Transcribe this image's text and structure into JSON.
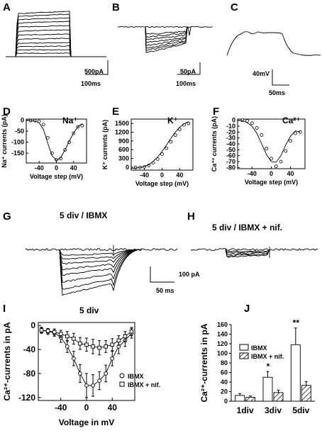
{
  "panel_labels": {
    "A": "A",
    "B": "B",
    "C": "C",
    "D": "D",
    "E": "E",
    "F": "F",
    "G": "G",
    "H": "H",
    "I": "I",
    "J": "J"
  },
  "scalebars": {
    "A_y": "500pA",
    "A_x": "100ms",
    "B_y": "50pA",
    "B_x": "100ms",
    "C_y": "40mV",
    "C_x": "50ms",
    "GH_y": "100 pA",
    "GH_x": "50 ms"
  },
  "titles": {
    "G": "5 div / IBMX",
    "H": "5 div / IBMX + nif."
  },
  "chart_data": [
    {
      "id": "D",
      "type": "line",
      "title": "Na⁺",
      "xlabel": "Voltage step (mV)",
      "ylabel": "Na⁺ currents (pA)",
      "xlim": [
        -70,
        70
      ],
      "ylim": [
        -195,
        5
      ],
      "xticks": [
        -40,
        0,
        40
      ],
      "yticks": [
        0,
        -50,
        -100,
        -150
      ],
      "series": [
        {
          "style": "points",
          "x": [
            -60,
            -50,
            -40,
            -30,
            -20,
            -10,
            0,
            10,
            20,
            30,
            40,
            50,
            60
          ],
          "y": [
            -2,
            -2,
            -5,
            -20,
            -80,
            -150,
            -180,
            -175,
            -135,
            -100,
            -60,
            -30,
            -25
          ]
        },
        {
          "style": "line",
          "x": [
            -70,
            -60,
            -50,
            -40,
            -30,
            -20,
            -10,
            0,
            10,
            20,
            30,
            40,
            50,
            60
          ],
          "y": [
            -1,
            -2,
            -4,
            -12,
            -42,
            -105,
            -162,
            -183,
            -170,
            -135,
            -95,
            -58,
            -30,
            -15
          ]
        }
      ]
    },
    {
      "id": "E",
      "type": "line",
      "title": "K⁺",
      "xlabel": "Voltage step (mV)",
      "ylabel": "K⁺ currents (pA)",
      "xlim": [
        -70,
        70
      ],
      "ylim": [
        -100,
        1650
      ],
      "xticks": [
        -40,
        0,
        40
      ],
      "yticks": [
        0,
        300,
        600,
        900,
        1200,
        1500
      ],
      "series": [
        {
          "style": "points",
          "x": [
            -60,
            -50,
            -40,
            -30,
            -20,
            -10,
            0,
            10,
            20,
            30,
            40,
            50,
            60
          ],
          "y": [
            -10,
            -5,
            10,
            60,
            150,
            280,
            450,
            650,
            870,
            1100,
            1300,
            1450,
            1500
          ]
        },
        {
          "style": "line",
          "x": [
            -70,
            -60,
            -50,
            -40,
            -30,
            -20,
            -10,
            0,
            10,
            20,
            30,
            40,
            50,
            60
          ],
          "y": [
            -40,
            -30,
            -10,
            20,
            90,
            200,
            350,
            540,
            760,
            990,
            1200,
            1370,
            1490,
            1560
          ]
        }
      ]
    },
    {
      "id": "F",
      "type": "line",
      "title": "Ca²⁺",
      "xlabel": "Voltage step (mV)",
      "ylabel": "Ca⁺² currents (pA)",
      "xlim": [
        -70,
        70
      ],
      "ylim": [
        -82,
        2
      ],
      "xticks": [
        -40,
        0,
        40
      ],
      "yticks": [
        0,
        -10,
        -20,
        -30,
        -40,
        -50,
        -60,
        -70,
        -80
      ],
      "series": [
        {
          "style": "points",
          "x": [
            -60,
            -50,
            -40,
            -30,
            -20,
            -10,
            0,
            10,
            20,
            30,
            40,
            50,
            60
          ],
          "y": [
            0,
            -1,
            -5,
            -13,
            -25,
            -48,
            -65,
            -78,
            -70,
            -52,
            -35,
            -22,
            -20
          ]
        },
        {
          "style": "line",
          "x": [
            -70,
            -60,
            -50,
            -40,
            -30,
            -20,
            -10,
            0,
            10,
            20,
            30,
            40,
            50,
            60
          ],
          "y": [
            0,
            -1,
            -4,
            -10,
            -22,
            -40,
            -58,
            -70,
            -71,
            -60,
            -42,
            -27,
            -18,
            -20
          ]
        }
      ]
    },
    {
      "id": "I",
      "type": "line",
      "title": "5 div",
      "xlabel": "Voltage in mV",
      "ylabel": "Ca²⁺-currents in pA",
      "xlim": [
        -75,
        75
      ],
      "ylim": [
        -125,
        5
      ],
      "xticks": [
        -40,
        0,
        40
      ],
      "yticks": [
        0,
        -40,
        -80,
        -120
      ],
      "legend_position": "bottom-right",
      "series": [
        {
          "name": "IBMX",
          "marker": "circle",
          "x": [
            -70,
            -60,
            -50,
            -40,
            -30,
            -20,
            -10,
            0,
            10,
            20,
            30,
            40,
            50,
            60,
            70
          ],
          "y": [
            -8,
            -10,
            -12,
            -20,
            -35,
            -55,
            -80,
            -100,
            -100,
            -92,
            -80,
            -55,
            -35,
            -25,
            -13
          ],
          "err": [
            5,
            5,
            6,
            8,
            10,
            12,
            15,
            20,
            18,
            15,
            14,
            12,
            12,
            10,
            8
          ]
        },
        {
          "name": "IBMX + nif.",
          "marker": "square",
          "x": [
            -70,
            -60,
            -50,
            -40,
            -30,
            -20,
            -10,
            0,
            10,
            20,
            30,
            40,
            50,
            60,
            70
          ],
          "y": [
            -8,
            -9,
            -11,
            -14,
            -18,
            -22,
            -30,
            -32,
            -35,
            -37,
            -35,
            -32,
            -25,
            -18,
            -10
          ],
          "err": [
            4,
            4,
            5,
            6,
            8,
            9,
            10,
            11,
            12,
            12,
            10,
            10,
            8,
            8,
            7
          ]
        }
      ]
    },
    {
      "id": "J",
      "type": "bar",
      "categories": [
        "1div",
        "3div",
        "5div"
      ],
      "ylabel": "Ca²⁺-currents in pA",
      "ylim": [
        0,
        160
      ],
      "yticks": [
        0,
        20,
        40,
        60,
        80,
        100,
        120,
        140,
        160
      ],
      "legend_position": "top-left",
      "series": [
        {
          "name": "IBMX",
          "fill": "white",
          "values": [
            12,
            50,
            118
          ],
          "err": [
            4,
            12,
            35
          ]
        },
        {
          "name": "IBMX + nif.",
          "fill": "hatched",
          "values": [
            8,
            18,
            33
          ],
          "err": [
            3,
            5,
            8
          ]
        }
      ],
      "annotations": [
        {
          "category": "3div",
          "text": "*"
        },
        {
          "category": "5div",
          "text": "**"
        }
      ]
    }
  ]
}
